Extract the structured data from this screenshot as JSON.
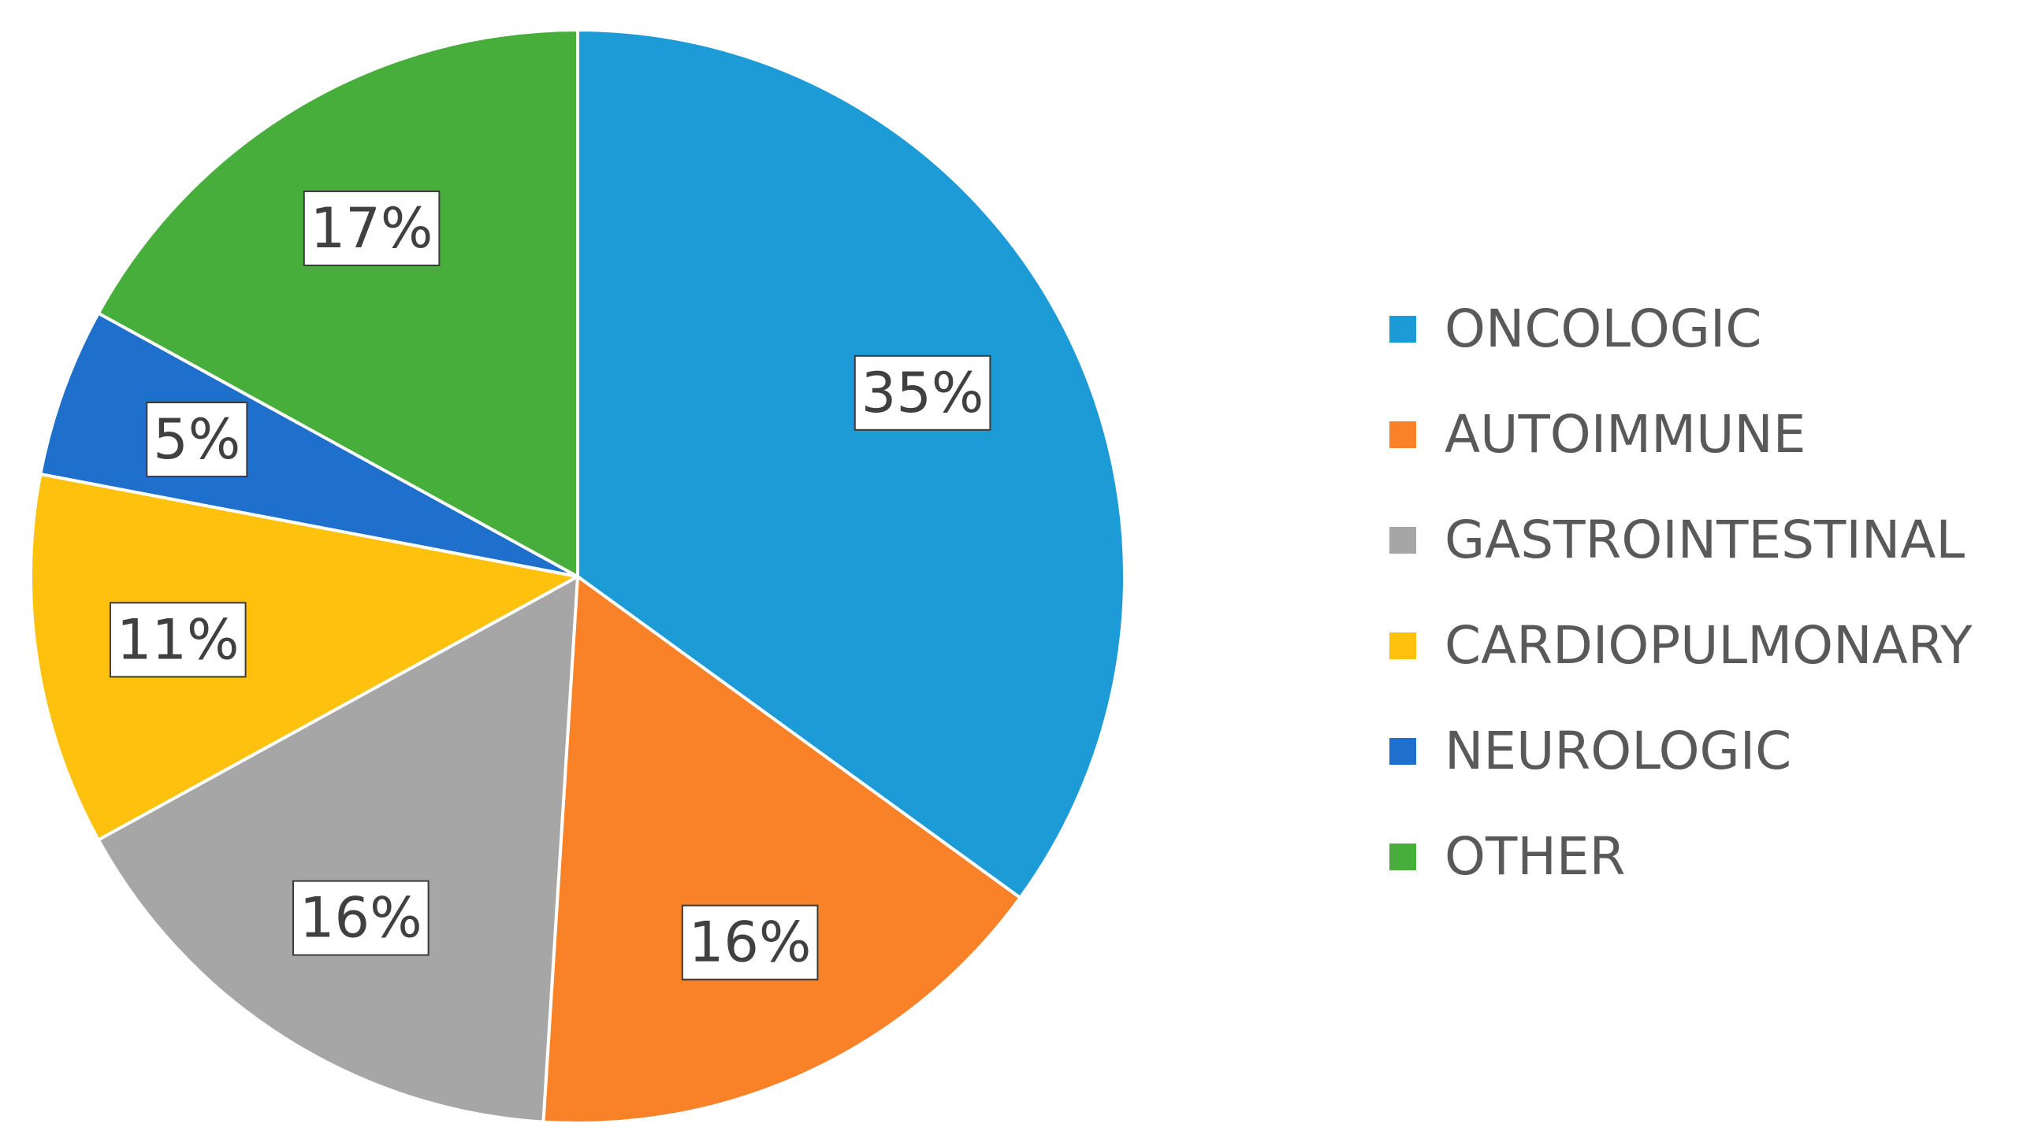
{
  "chart_data": {
    "type": "pie",
    "title": "",
    "start_angle_deg": 0,
    "direction": "clockwise",
    "legend_position": "right",
    "slices": [
      {
        "label": "ONCOLOGIC",
        "value": 35,
        "display": "35%",
        "color": "#1c9bd7"
      },
      {
        "label": "AUTOIMMUNE",
        "value": 16,
        "display": "16%",
        "color": "#f98127"
      },
      {
        "label": "GASTROINTESTINAL",
        "value": 16,
        "display": "16%",
        "color": "#a6a6a6"
      },
      {
        "label": "CARDIOPULMONARY",
        "value": 11,
        "display": "11%",
        "color": "#fec10e"
      },
      {
        "label": "NEUROLOGIC",
        "value": 5,
        "display": "5%",
        "color": "#1f6fcc"
      },
      {
        "label": "OTHER",
        "value": 17,
        "display": "17%",
        "color": "#47ae3c"
      }
    ]
  }
}
